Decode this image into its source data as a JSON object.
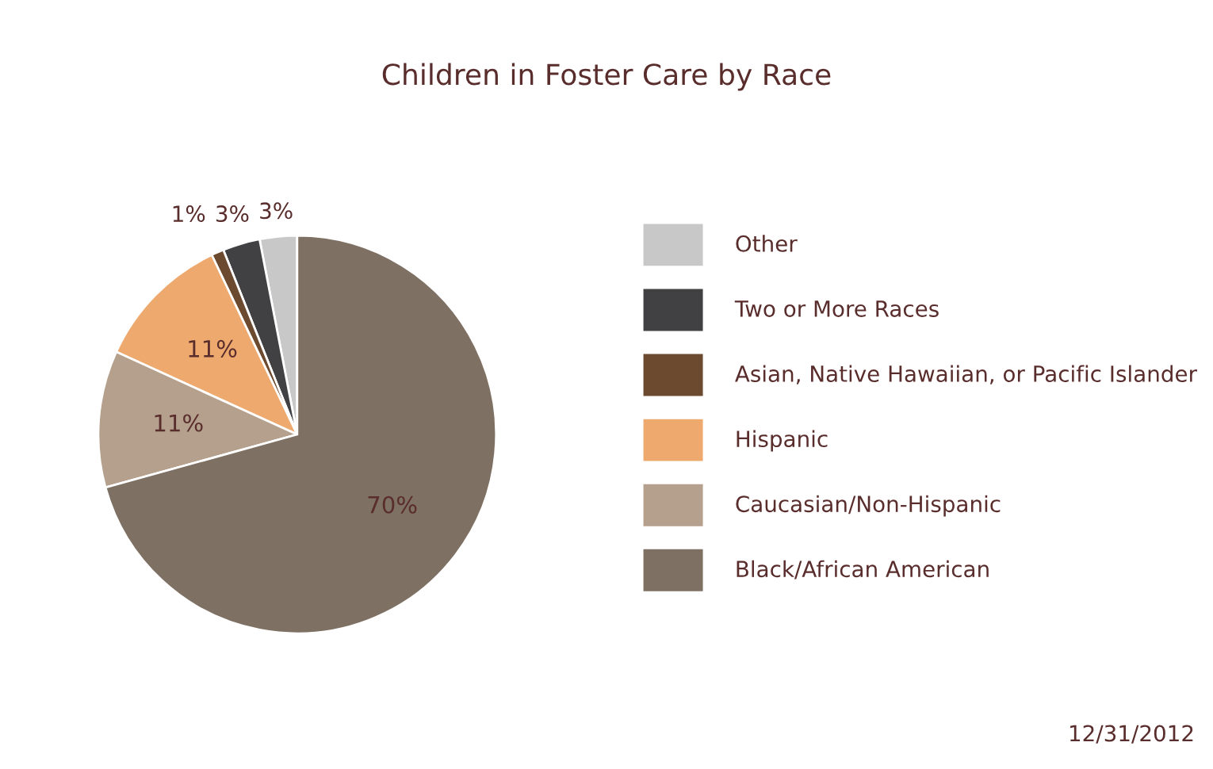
{
  "chart_data": {
    "type": "pie",
    "title": "Children in Foster Care by Race",
    "categories": [
      "Other",
      "Two or More Races",
      "Asian, Native Hawaiian, or Pacific Islander",
      "Hispanic",
      "Caucasian/Non-Hispanic",
      "Black/African American"
    ],
    "values": [
      3,
      3,
      1,
      11,
      11,
      70
    ],
    "value_labels": [
      "3%",
      "3%",
      "1%",
      "11%",
      "11%",
      "70%"
    ],
    "colors": [
      "#c8c8c8",
      "#414042",
      "#6b4a2f",
      "#eea96f",
      "#b4a08c",
      "#7e7063"
    ],
    "legend": "right",
    "annotations": [
      "12/31/2012"
    ]
  }
}
